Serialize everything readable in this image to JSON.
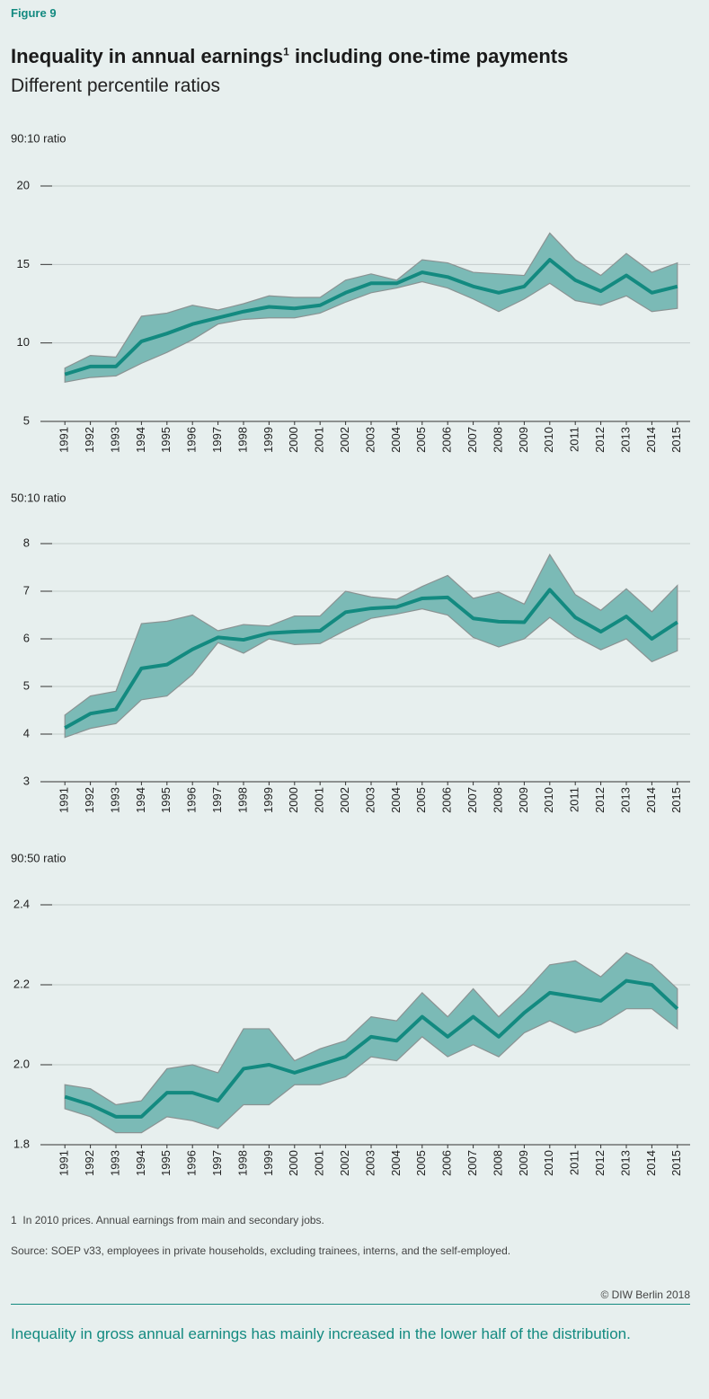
{
  "figure_label": "Figure 9",
  "title": {
    "text": "Inequality in annual earnings",
    "footnote_mark": "1",
    "rest": "including one-time payments"
  },
  "subtitle": "Different percentile ratios",
  "chart_data": [
    {
      "type": "line",
      "y_label": "90:10 ratio",
      "categories": [
        "1991",
        "1992",
        "1993",
        "1994",
        "1995",
        "1996",
        "1997",
        "1998",
        "1999",
        "2000",
        "2001",
        "2002",
        "2003",
        "2004",
        "2005",
        "2006",
        "2007",
        "2008",
        "2009",
        "2010",
        "2011",
        "2012",
        "2013",
        "2014",
        "2015"
      ],
      "ylim": [
        5,
        20
      ],
      "yticks": [
        5,
        10,
        15,
        20
      ],
      "grid": true,
      "series": [
        {
          "color": "#138a80",
          "values": [
            8.0,
            8.5,
            8.5,
            10.1,
            10.6,
            11.2,
            11.6,
            12.0,
            12.3,
            12.2,
            12.4,
            13.2,
            13.8,
            13.8,
            14.5,
            14.2,
            13.6,
            13.2,
            13.6,
            15.3,
            14.0,
            13.3,
            14.3,
            13.2,
            13.6
          ]
        }
      ],
      "band": {
        "color": "#7bbab6",
        "upper": [
          8.4,
          9.2,
          9.1,
          11.7,
          11.9,
          12.4,
          12.1,
          12.5,
          13.0,
          12.9,
          12.9,
          14.0,
          14.4,
          14.0,
          15.3,
          15.1,
          14.5,
          14.4,
          14.3,
          17.0,
          15.3,
          14.3,
          15.7,
          14.5,
          15.1
        ],
        "lower": [
          7.5,
          7.8,
          7.9,
          8.7,
          9.4,
          10.2,
          11.2,
          11.5,
          11.6,
          11.6,
          11.9,
          12.6,
          13.2,
          13.5,
          13.9,
          13.5,
          12.8,
          12.0,
          12.8,
          13.8,
          12.7,
          12.4,
          13.0,
          12.0,
          12.2
        ]
      }
    },
    {
      "type": "line",
      "y_label": "50:10 ratio",
      "categories": [
        "1991",
        "1992",
        "1993",
        "1994",
        "1995",
        "1996",
        "1997",
        "1998",
        "1999",
        "2000",
        "2001",
        "2002",
        "2003",
        "2004",
        "2005",
        "2006",
        "2007",
        "2008",
        "2009",
        "2010",
        "2011",
        "2012",
        "2013",
        "2014",
        "2015"
      ],
      "ylim": [
        3,
        8
      ],
      "yticks": [
        3,
        4,
        5,
        6,
        7,
        8
      ],
      "grid": true,
      "series": [
        {
          "color": "#138a80",
          "values": [
            4.13,
            4.43,
            4.52,
            5.38,
            5.46,
            5.78,
            6.03,
            5.98,
            6.12,
            6.15,
            6.17,
            6.56,
            6.64,
            6.67,
            6.85,
            6.87,
            6.43,
            6.36,
            6.35,
            7.03,
            6.45,
            6.15,
            6.47,
            6.0,
            6.35
          ]
        }
      ],
      "band": {
        "color": "#7bbab6",
        "upper": [
          4.4,
          4.8,
          4.9,
          6.32,
          6.37,
          6.5,
          6.17,
          6.3,
          6.27,
          6.48,
          6.48,
          7.0,
          6.88,
          6.83,
          7.1,
          7.33,
          6.85,
          6.98,
          6.73,
          7.77,
          6.93,
          6.6,
          7.05,
          6.57,
          7.12
        ],
        "lower": [
          3.93,
          4.12,
          4.22,
          4.72,
          4.8,
          5.25,
          5.92,
          5.7,
          6.0,
          5.88,
          5.9,
          6.18,
          6.43,
          6.52,
          6.63,
          6.5,
          6.03,
          5.83,
          6.0,
          6.45,
          6.05,
          5.77,
          6.0,
          5.52,
          5.75
        ]
      }
    },
    {
      "type": "line",
      "y_label": "90:50 ratio",
      "categories": [
        "1991",
        "1992",
        "1993",
        "1994",
        "1995",
        "1996",
        "1997",
        "1998",
        "1999",
        "2000",
        "2001",
        "2002",
        "2003",
        "2004",
        "2005",
        "2006",
        "2007",
        "2008",
        "2009",
        "2010",
        "2011",
        "2012",
        "2013",
        "2014",
        "2015"
      ],
      "ylim": [
        1.8,
        2.4
      ],
      "yticks": [
        1.8,
        {
          "value": 2,
          "label": "2.0"
        },
        2.2,
        2.4
      ],
      "grid": true,
      "series": [
        {
          "color": "#138a80",
          "values": [
            1.92,
            1.9,
            1.87,
            1.87,
            1.93,
            1.93,
            1.91,
            1.99,
            2.0,
            1.98,
            2.0,
            2.02,
            2.07,
            2.06,
            2.12,
            2.07,
            2.12,
            2.07,
            2.13,
            2.18,
            2.17,
            2.16,
            2.21,
            2.2,
            2.14
          ]
        }
      ],
      "band": {
        "color": "#7bbab6",
        "upper": [
          1.95,
          1.94,
          1.9,
          1.91,
          1.99,
          2.0,
          1.98,
          2.09,
          2.09,
          2.01,
          2.04,
          2.06,
          2.12,
          2.11,
          2.18,
          2.12,
          2.19,
          2.12,
          2.18,
          2.25,
          2.26,
          2.22,
          2.28,
          2.25,
          2.19
        ],
        "lower": [
          1.89,
          1.87,
          1.83,
          1.83,
          1.87,
          1.86,
          1.84,
          1.9,
          1.9,
          1.95,
          1.95,
          1.97,
          2.02,
          2.01,
          2.07,
          2.02,
          2.05,
          2.02,
          2.08,
          2.11,
          2.08,
          2.1,
          2.14,
          2.14,
          2.09
        ]
      }
    }
  ],
  "footnote": {
    "mark": "1",
    "text": "In 2010 prices. Annual earnings from main and secondary jobs."
  },
  "source": "Source: SOEP v33, employees in private households, excluding trainees, interns, and the self-employed.",
  "copyright": "© DIW Berlin 2018",
  "conclusion": "Inequality in gross annual earnings has mainly increased in the lower half of the distribution."
}
